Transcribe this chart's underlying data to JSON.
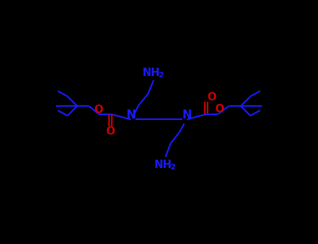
{
  "bg": "#000000",
  "lc": "#1a1aff",
  "oc": "#cc0000",
  "nc": "#1a1aff",
  "lw": 1.6,
  "LN": [
    168,
    182
  ],
  "RN": [
    272,
    182
  ],
  "top_NH2_label": "NH",
  "top_NH2_sub": "2",
  "bot_NH2_label": "NH",
  "bot_NH2_sub": "2",
  "O_label": "O",
  "N_label": "N"
}
